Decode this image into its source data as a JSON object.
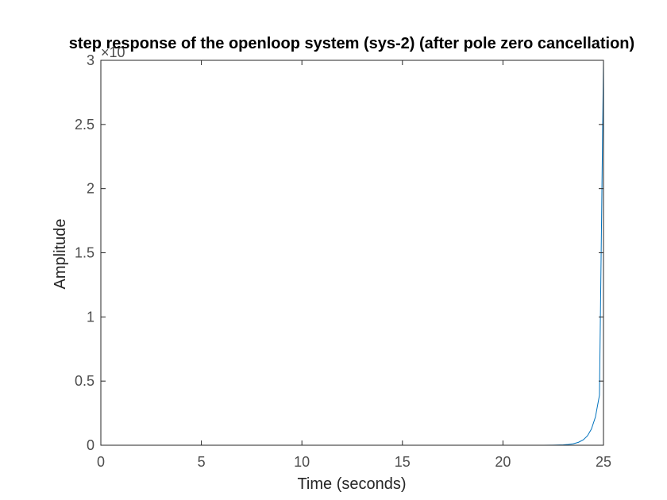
{
  "chart_data": {
    "type": "line",
    "title": "step response of the openloop system (sys-2) (after pole zero cancellation)",
    "xlabel": "Time (seconds)",
    "ylabel": "Amplitude",
    "xlim": [
      0,
      25
    ],
    "ylim": [
      0,
      3
    ],
    "xticks": [
      0,
      5,
      10,
      15,
      20,
      25
    ],
    "xtick_labels": [
      "0",
      "5",
      "10",
      "15",
      "20",
      "25"
    ],
    "yticks": [
      0,
      0.5,
      1,
      1.5,
      2,
      2.5,
      3
    ],
    "ytick_labels": [
      "0",
      "0.5",
      "1",
      "1.5",
      "2",
      "2.5",
      "3"
    ],
    "y_multiplier_label": "×10",
    "grid": false,
    "series": [
      {
        "color": "#0072bd",
        "x": [
          0,
          5,
          10,
          15,
          20,
          21,
          22,
          22.5,
          23,
          23.25,
          23.5,
          23.75,
          24,
          24.2,
          24.4,
          24.6,
          24.8,
          25
        ],
        "y": [
          0,
          0,
          0,
          0,
          0,
          4e-05,
          0.00035,
          0.001,
          0.0033,
          0.0062,
          0.0118,
          0.0225,
          0.043,
          0.073,
          0.126,
          0.22,
          0.39,
          3.0
        ]
      }
    ]
  }
}
